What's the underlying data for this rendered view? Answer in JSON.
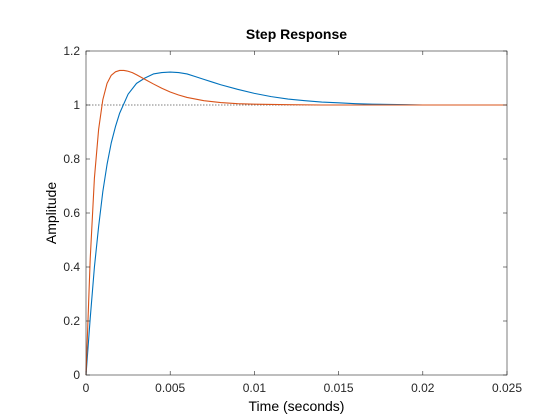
{
  "chart_data": {
    "type": "line",
    "title": "Step Response",
    "xlabel": "Time (seconds)",
    "ylabel": "Amplitude",
    "xlim": [
      0,
      0.025
    ],
    "ylim": [
      0,
      1.2
    ],
    "x_ticks": [
      0,
      0.005,
      0.01,
      0.015,
      0.02,
      0.025
    ],
    "x_tick_labels": [
      "0",
      "0.005",
      "0.01",
      "0.015",
      "0.02",
      "0.025"
    ],
    "y_ticks": [
      0,
      0.2,
      0.4,
      0.6,
      0.8,
      1,
      1.2
    ],
    "y_tick_labels": [
      "0",
      "0.2",
      "0.4",
      "0.6",
      "0.8",
      "1",
      "1.2"
    ],
    "grid": false,
    "reference_line": {
      "y": 1,
      "style": "dotted",
      "color": "#000000"
    },
    "series": [
      {
        "color": "#0072BD",
        "x": [
          0,
          0.00025,
          0.0005,
          0.00075,
          0.001,
          0.00125,
          0.0015,
          0.00175,
          0.002,
          0.0025,
          0.003,
          0.0035,
          0.004,
          0.0045,
          0.005,
          0.0055,
          0.006,
          0.0065,
          0.007,
          0.0075,
          0.008,
          0.009,
          0.01,
          0.011,
          0.012,
          0.013,
          0.014,
          0.015,
          0.016,
          0.017,
          0.018,
          0.019,
          0.02,
          0.022,
          0.025
        ],
        "y": [
          0,
          0.21,
          0.4,
          0.55,
          0.68,
          0.78,
          0.86,
          0.92,
          0.97,
          1.04,
          1.08,
          1.1,
          1.115,
          1.12,
          1.122,
          1.12,
          1.115,
          1.105,
          1.095,
          1.085,
          1.075,
          1.058,
          1.043,
          1.031,
          1.022,
          1.016,
          1.011,
          1.008,
          1.005,
          1.003,
          1.002,
          1.001,
          1.0,
          1.0,
          1.0
        ]
      },
      {
        "color": "#D95319",
        "x": [
          0,
          0.00025,
          0.0005,
          0.00075,
          0.001,
          0.00125,
          0.0015,
          0.00175,
          0.002,
          0.00225,
          0.0025,
          0.00275,
          0.003,
          0.0035,
          0.004,
          0.0045,
          0.005,
          0.0055,
          0.006,
          0.007,
          0.008,
          0.009,
          0.01,
          0.011,
          0.012,
          0.014,
          0.016,
          0.02,
          0.025
        ],
        "y": [
          0,
          0.43,
          0.73,
          0.91,
          1.02,
          1.08,
          1.11,
          1.123,
          1.128,
          1.128,
          1.125,
          1.12,
          1.112,
          1.095,
          1.078,
          1.062,
          1.048,
          1.037,
          1.028,
          1.016,
          1.009,
          1.005,
          1.003,
          1.002,
          1.001,
          1.0,
          1.0,
          1.0,
          1.0
        ]
      }
    ]
  }
}
